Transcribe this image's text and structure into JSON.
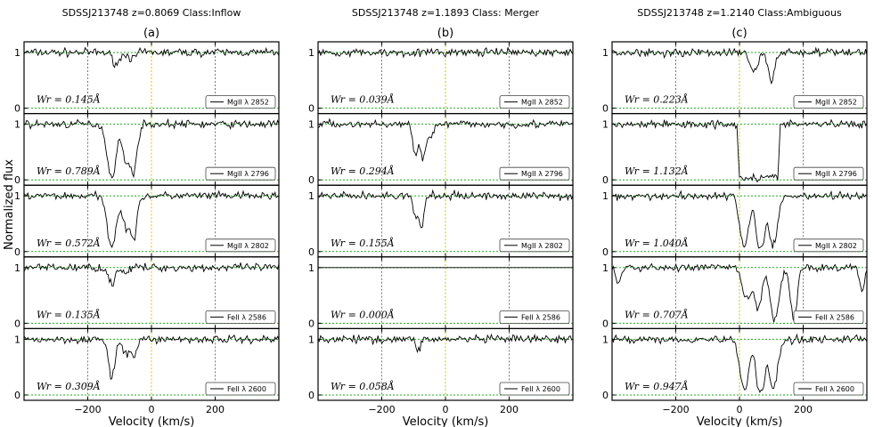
{
  "figure": {
    "ylabel": "Normalized flux",
    "xlabel": "Velocity (km/s)"
  },
  "chart_data": [
    {
      "type": "line",
      "title": "SDSSJ213748 z=0.8069 Class:Inflow",
      "panel_label": "(a)",
      "xlabel": "Velocity (km/s)",
      "ylabel": "Normalized flux",
      "xlim": [
        -400,
        400
      ],
      "xticks": [
        -200,
        0,
        200
      ],
      "xtick_labels": [
        "−200",
        "0",
        "200"
      ],
      "yticks": [
        0,
        1
      ],
      "ytick_labels": [
        "0",
        "1"
      ],
      "grid": "dashed verticals at −200, 0, 200; dashed continuum at 1 and zero at 0",
      "legend_placement": "bottom-right",
      "series": [
        {
          "name": "MgII λ 2852",
          "ew": "Wr = 0.145Å",
          "absorption": [
            {
              "v": -110,
              "depth": 0.2,
              "width": 12
            },
            {
              "v": -60,
              "depth": 0.12,
              "width": 10
            }
          ]
        },
        {
          "name": "MgII λ 2796",
          "ew": "Wr = 0.789Å",
          "absorption": [
            {
              "v": -125,
              "depth": 0.95,
              "width": 14
            },
            {
              "v": -80,
              "depth": 0.7,
              "width": 10
            },
            {
              "v": -55,
              "depth": 0.85,
              "width": 10
            }
          ]
        },
        {
          "name": "MgII λ 2802",
          "ew": "Wr = 0.572Å",
          "absorption": [
            {
              "v": -125,
              "depth": 0.9,
              "width": 14
            },
            {
              "v": -80,
              "depth": 0.55,
              "width": 10
            },
            {
              "v": -55,
              "depth": 0.75,
              "width": 10
            }
          ]
        },
        {
          "name": "FeII λ 2586",
          "ew": "Wr = 0.135Å",
          "absorption": [
            {
              "v": -125,
              "depth": 0.3,
              "width": 10
            },
            {
              "v": -80,
              "depth": 0.1,
              "width": 8
            }
          ]
        },
        {
          "name": "FeII λ 2600",
          "ew": "Wr = 0.309Å",
          "absorption": [
            {
              "v": -125,
              "depth": 0.7,
              "width": 10
            },
            {
              "v": -80,
              "depth": 0.3,
              "width": 10
            },
            {
              "v": -55,
              "depth": 0.3,
              "width": 8
            }
          ]
        }
      ]
    },
    {
      "type": "line",
      "title": "SDSSJ213748 z=1.1893 Class: Merger",
      "panel_label": "(b)",
      "xlabel": "Velocity (km/s)",
      "xlim": [
        -400,
        400
      ],
      "xticks": [
        -200,
        0,
        200
      ],
      "xtick_labels": [
        "−200",
        "0",
        "200"
      ],
      "yticks": [
        0,
        1
      ],
      "ytick_labels": [
        "0",
        "1"
      ],
      "legend_placement": "bottom-right",
      "series": [
        {
          "name": "MgII λ 2852",
          "ew": "Wr = 0.039Å",
          "absorption": []
        },
        {
          "name": "MgII λ 2796",
          "ew": "Wr = 0.294Å",
          "absorption": [
            {
              "v": -95,
              "depth": 0.55,
              "width": 8
            },
            {
              "v": -70,
              "depth": 0.6,
              "width": 8
            },
            {
              "v": -45,
              "depth": 0.2,
              "width": 10
            }
          ]
        },
        {
          "name": "MgII λ 2802",
          "ew": "Wr = 0.155Å",
          "absorption": [
            {
              "v": -95,
              "depth": 0.35,
              "width": 8
            },
            {
              "v": -75,
              "depth": 0.6,
              "width": 7
            }
          ]
        },
        {
          "name": "FeII λ 2586",
          "ew": "Wr = 0.000Å",
          "absorption": [],
          "flat": true
        },
        {
          "name": "FeII λ 2600",
          "ew": "Wr = 0.058Å",
          "absorption": [
            {
              "v": -85,
              "depth": 0.2,
              "width": 6
            }
          ]
        }
      ]
    },
    {
      "type": "line",
      "title": "SDSSJ213748 z=1.2140 Class:Ambiguous",
      "panel_label": "(c)",
      "xlabel": "Velocity (km/s)",
      "xlim": [
        -400,
        400
      ],
      "xticks": [
        -200,
        0,
        200
      ],
      "xtick_labels": [
        "−200",
        "0",
        "200"
      ],
      "yticks": [
        0,
        1
      ],
      "ytick_labels": [
        "0",
        "1"
      ],
      "legend_placement": "bottom-right",
      "series": [
        {
          "name": "MgII λ 2852",
          "ew": "Wr = 0.223Å",
          "absorption": [
            {
              "v": 45,
              "depth": 0.35,
              "width": 12
            },
            {
              "v": 100,
              "depth": 0.5,
              "width": 10
            }
          ]
        },
        {
          "name": "MgII λ 2796",
          "ew": "Wr = 1.132Å",
          "absorption": [
            {
              "v": 65,
              "depth": 0.96,
              "saturated": true,
              "from": 0,
              "to": 120
            }
          ]
        },
        {
          "name": "MgII λ 2802",
          "ew": "Wr = 1.040Å",
          "absorption": [
            {
              "v": 15,
              "depth": 0.9,
              "width": 14
            },
            {
              "v": 105,
              "depth": 0.9,
              "width": 14
            },
            {
              "v": 75,
              "depth": 0.55,
              "width": 6
            },
            {
              "v": 60,
              "depth": 0.9,
              "width": 9
            }
          ]
        },
        {
          "name": "FeII λ 2586",
          "ew": "Wr = 0.707Å",
          "absorption": [
            {
              "v": 25,
              "depth": 0.55,
              "width": 16
            },
            {
              "v": 60,
              "depth": 0.7,
              "width": 10
            },
            {
              "v": 110,
              "depth": 0.95,
              "width": 14
            },
            {
              "v": 170,
              "depth": 0.95,
              "width": 10
            },
            {
              "v": -380,
              "depth": 0.3,
              "width": 8
            },
            {
              "v": 385,
              "depth": 0.4,
              "width": 8
            }
          ]
        },
        {
          "name": "FeII λ 2600",
          "ew": "Wr = 0.947Å",
          "absorption": [
            {
              "v": 15,
              "depth": 0.9,
              "width": 14
            },
            {
              "v": 105,
              "depth": 0.9,
              "width": 14
            },
            {
              "v": 75,
              "depth": 0.55,
              "width": 6
            },
            {
              "v": 60,
              "depth": 0.9,
              "width": 9
            }
          ]
        }
      ]
    }
  ]
}
